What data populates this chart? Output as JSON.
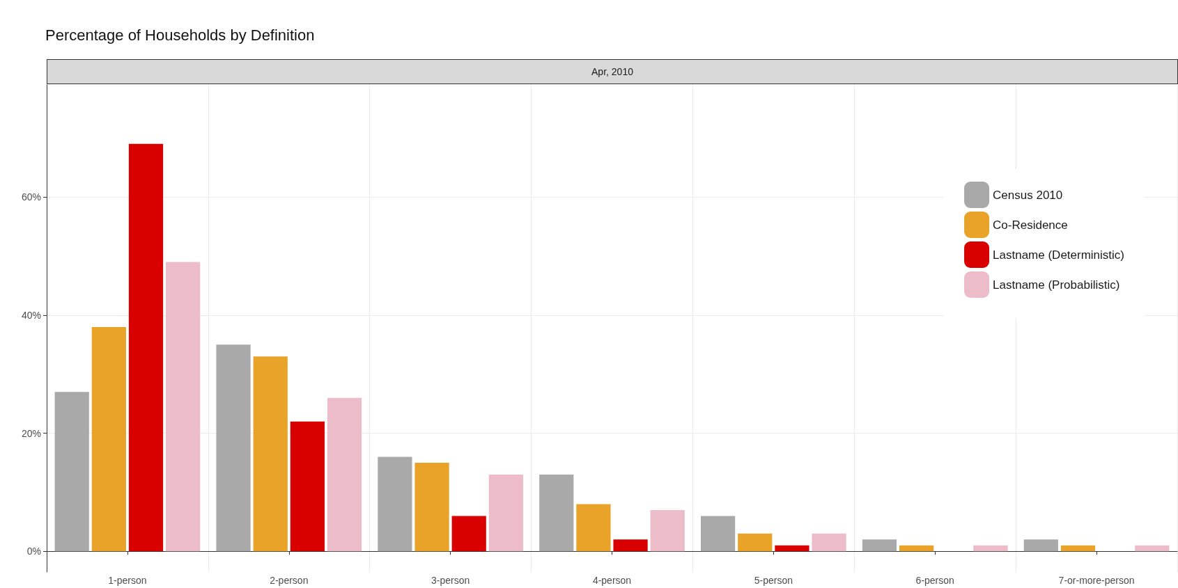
{
  "chart_data": {
    "type": "bar",
    "title": "Percentage of Households by Definition",
    "subtitle": "Apr, 2010",
    "categories": [
      "1-person",
      "2-person",
      "3-person",
      "4-person",
      "5-person",
      "6-person",
      "7-or-more-person"
    ],
    "series": [
      {
        "name": "Census 2010",
        "color": "#a9a9a9",
        "values": [
          27,
          35,
          16,
          13,
          6,
          2,
          2
        ]
      },
      {
        "name": "Co-Residence",
        "color": "#e8a328",
        "values": [
          38,
          33,
          15,
          8,
          3,
          1,
          1
        ]
      },
      {
        "name": "Lastname (Deterministic)",
        "color": "#d90000",
        "values": [
          69,
          22,
          6,
          2,
          1,
          0,
          0
        ]
      },
      {
        "name": "Lastname (Probabilistic)",
        "color": "#ecbcc8",
        "values": [
          49,
          26,
          13,
          7,
          3,
          1,
          1
        ]
      }
    ],
    "ylim": [
      -3.5,
      79
    ],
    "yticks": [
      {
        "value": 0,
        "label": "0%"
      },
      {
        "value": 20,
        "label": "20%"
      },
      {
        "value": 40,
        "label": "40%"
      },
      {
        "value": 60,
        "label": "60%"
      }
    ],
    "grid": true,
    "legend": "top right"
  }
}
